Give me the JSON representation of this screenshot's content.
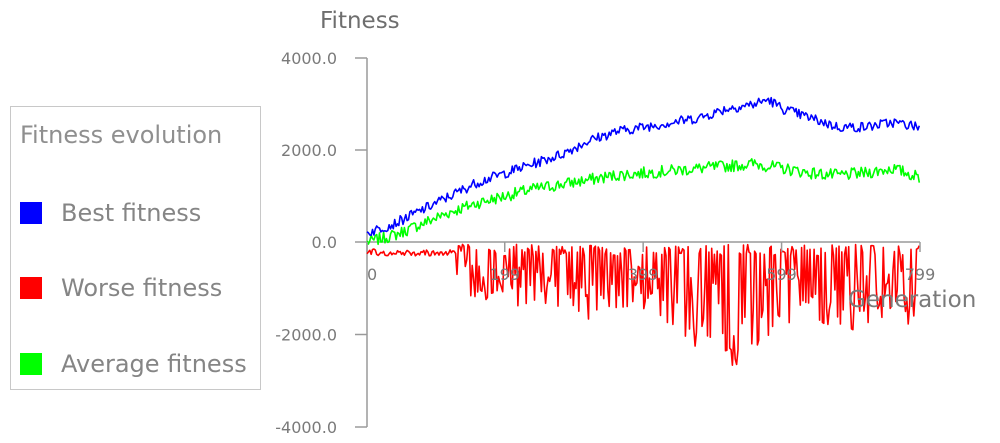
{
  "chart_data": {
    "type": "line",
    "title": "",
    "ylabel": "Fitness",
    "xlabel": "Generation",
    "ylim": [
      -4000,
      4000
    ],
    "xlim": [
      0,
      799
    ],
    "y_ticks": [
      {
        "value": 4000,
        "label": "4000.0"
      },
      {
        "value": 2000,
        "label": "2000.0"
      },
      {
        "value": 0,
        "label": "0.0"
      },
      {
        "value": -2000,
        "label": "-2000.0"
      },
      {
        "value": -4000,
        "label": "-4000.0"
      }
    ],
    "x_ticks": [
      {
        "value": 0,
        "label": "0"
      },
      {
        "value": 199,
        "label": "199"
      },
      {
        "value": 399,
        "label": "399"
      },
      {
        "value": 599,
        "label": "599"
      },
      {
        "value": 799,
        "label": "799"
      }
    ],
    "legend": {
      "title": "Fitness evolution",
      "position": "left",
      "items": [
        {
          "label": "Best fitness",
          "color": "#0000ff"
        },
        {
          "label": "Worse fitness",
          "color": "#ff0000"
        },
        {
          "label": "Average fitness",
          "color": "#00ff00"
        }
      ]
    },
    "series": [
      {
        "name": "Best fitness",
        "color": "#0000ff",
        "x": [
          0,
          40,
          80,
          120,
          160,
          200,
          240,
          280,
          320,
          360,
          400,
          440,
          480,
          520,
          560,
          580,
          600,
          640,
          680,
          720,
          760,
          799
        ],
        "y": [
          200,
          400,
          700,
          1000,
          1300,
          1500,
          1700,
          1900,
          2200,
          2400,
          2500,
          2600,
          2700,
          2900,
          3000,
          3100,
          2900,
          2700,
          2500,
          2500,
          2600,
          2500
        ]
      },
      {
        "name": "Worse fitness",
        "color": "#ff0000",
        "x": [
          0,
          40,
          80,
          120,
          160,
          200,
          240,
          280,
          320,
          360,
          400,
          440,
          480,
          520,
          560,
          600,
          640,
          680,
          720,
          760,
          799
        ],
        "y": [
          -200,
          -300,
          -250,
          -900,
          -1000,
          -1300,
          -1100,
          -1600,
          -1500,
          -1400,
          -1200,
          -1500,
          -2000,
          -2400,
          -2200,
          -1500,
          -1400,
          -1700,
          -1500,
          -1300,
          -1900
        ]
      },
      {
        "name": "Average fitness",
        "color": "#00ff00",
        "x": [
          0,
          40,
          80,
          120,
          160,
          200,
          240,
          280,
          320,
          360,
          400,
          440,
          480,
          520,
          560,
          600,
          640,
          680,
          720,
          760,
          799
        ],
        "y": [
          0,
          150,
          400,
          650,
          850,
          1000,
          1150,
          1250,
          1350,
          1450,
          1500,
          1550,
          1600,
          1650,
          1700,
          1600,
          1500,
          1450,
          1500,
          1600,
          1400
        ]
      }
    ]
  }
}
